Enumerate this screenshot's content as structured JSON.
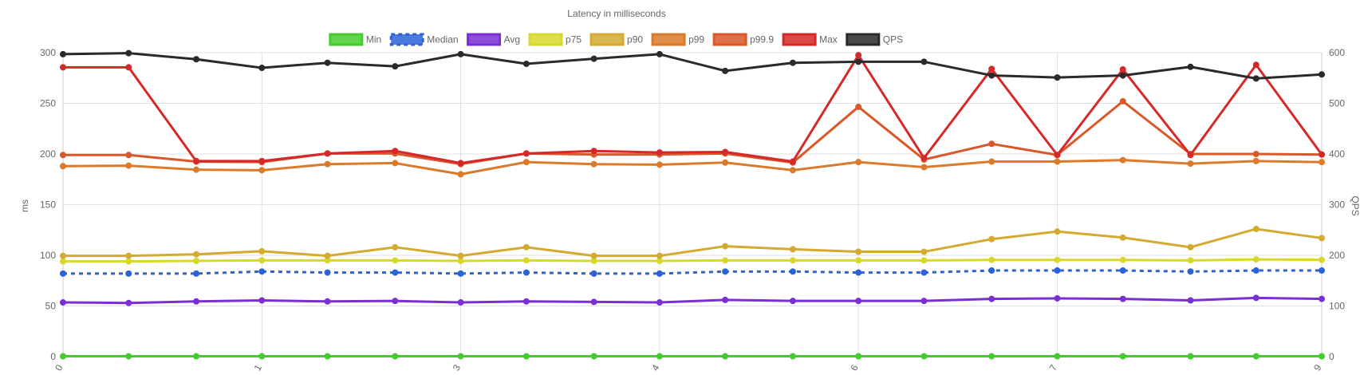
{
  "chart_data": {
    "type": "line",
    "title": "Latency in milliseconds",
    "ylabel_left": "ms",
    "ylabel_right": "QPS",
    "ylim_left": [
      0,
      300
    ],
    "ylim_right": [
      0,
      600
    ],
    "yticks_left": [
      "0",
      "50",
      "100",
      "150",
      "200",
      "250",
      "300"
    ],
    "yticks_right": [
      "0",
      "100",
      "200",
      "300",
      "400",
      "500",
      "600"
    ],
    "x": [
      0,
      0.33,
      0.67,
      1,
      1.33,
      1.67,
      2,
      2.33,
      2.67,
      3,
      3.33,
      3.67,
      4,
      4.33,
      4.67,
      5,
      5.33,
      5.67,
      6,
      6.33
    ],
    "x_tick_labels": [
      {
        "x": 0,
        "label": "0"
      },
      {
        "x": 1,
        "label": "1"
      },
      {
        "x": 2,
        "label": "3"
      },
      {
        "x": 3,
        "label": "4"
      },
      {
        "x": 4,
        "label": "6"
      },
      {
        "x": 5,
        "label": "7"
      },
      {
        "x": 6.33,
        "label": "9"
      }
    ],
    "grid": true,
    "legend_position": "top",
    "series": [
      {
        "name": "Min",
        "axis": "left",
        "color": "#44cc2f",
        "dashed": false,
        "values": [
          0.4,
          0.4,
          0.4,
          0.4,
          0.4,
          0.4,
          0.4,
          0.4,
          0.4,
          0.4,
          0.4,
          0.4,
          0.4,
          0.4,
          0.4,
          0.4,
          0.4,
          0.4,
          0.4,
          0.4
        ]
      },
      {
        "name": "Median",
        "axis": "left",
        "color": "#2b62d9",
        "dashed": true,
        "values": [
          82,
          82,
          82,
          84,
          83,
          83,
          82,
          83,
          82,
          82,
          84,
          84,
          83,
          83,
          85,
          85,
          85,
          84,
          85,
          85
        ]
      },
      {
        "name": "Avg",
        "axis": "left",
        "color": "#7a2fd4",
        "dashed": false,
        "values": [
          53.5,
          53,
          54.5,
          55.5,
          54.5,
          55,
          53.5,
          54.5,
          54,
          53.5,
          56,
          55,
          55,
          55,
          57,
          57.5,
          57,
          55.5,
          58,
          57
        ]
      },
      {
        "name": "p75",
        "axis": "left",
        "color": "#d8d82c",
        "dashed": false,
        "values": [
          94,
          94,
          94.5,
          95,
          95,
          95,
          94.5,
          95,
          94.5,
          94.5,
          95,
          95,
          95,
          95,
          95.5,
          95.5,
          95.5,
          95,
          96,
          95.5
        ]
      },
      {
        "name": "p90",
        "axis": "left",
        "color": "#d4aa30",
        "dashed": false,
        "values": [
          99.5,
          99.5,
          101,
          104,
          99.5,
          108,
          99.5,
          108,
          99.5,
          99.5,
          109,
          106,
          103.5,
          103.5,
          116,
          123.5,
          117.5,
          108,
          126,
          117
        ]
      },
      {
        "name": "p99",
        "axis": "left",
        "color": "#db7a2a",
        "dashed": false,
        "values": [
          188,
          188.5,
          184.5,
          184,
          190,
          191,
          180,
          192,
          190,
          189.5,
          191.5,
          184,
          192,
          187,
          192.5,
          192.5,
          194,
          190.5,
          193,
          192
        ]
      },
      {
        "name": "p99.9",
        "axis": "left",
        "color": "#d9582a",
        "dashed": false,
        "values": [
          199,
          199,
          192.5,
          192,
          200.5,
          200.5,
          190,
          200.5,
          199.5,
          199.5,
          200.5,
          191.5,
          246.5,
          194.5,
          210,
          199,
          252,
          200,
          200,
          199.5
        ]
      },
      {
        "name": "Max",
        "axis": "left",
        "color": "#d62828",
        "dashed": false,
        "values": [
          285.5,
          285.5,
          193,
          193,
          200.5,
          203,
          191,
          200.5,
          203,
          201.5,
          202,
          192.5,
          297.5,
          196,
          284,
          199,
          283.5,
          199,
          288,
          199.5
        ]
      },
      {
        "name": "QPS",
        "axis": "right",
        "color": "#2a2a2a",
        "dashed": false,
        "values": [
          597,
          599,
          587,
          570,
          580,
          573,
          597,
          578,
          588,
          597,
          564,
          580,
          582,
          582,
          555,
          551,
          555,
          572,
          549,
          557
        ]
      }
    ]
  }
}
